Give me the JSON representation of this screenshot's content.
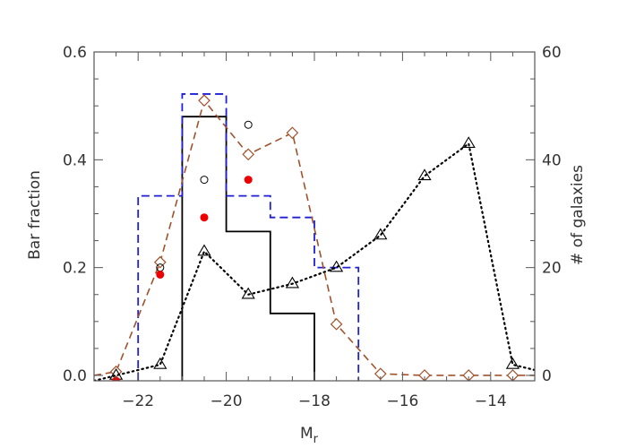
{
  "chart_data": {
    "type": "line",
    "xlabel": "M",
    "xlabel_sub": "r",
    "ylabel_left": "Bar fraction",
    "ylabel_right": "# of galaxies",
    "xlim": [
      -23,
      -13
    ],
    "ylim_left": [
      -0.01,
      0.6
    ],
    "ylim_right": [
      -1,
      60
    ],
    "grid": false,
    "x_ticks": [
      {
        "value": -22,
        "label": "−22"
      },
      {
        "value": -20,
        "label": "−20"
      },
      {
        "value": -18,
        "label": "−18"
      },
      {
        "value": -16,
        "label": "−16"
      },
      {
        "value": -14,
        "label": "−14"
      }
    ],
    "y_ticks_left": [
      {
        "value": 0.0,
        "label": "0.0"
      },
      {
        "value": 0.2,
        "label": "0.2"
      },
      {
        "value": 0.4,
        "label": "0.4"
      },
      {
        "value": 0.6,
        "label": "0.6"
      }
    ],
    "y_ticks_right": [
      {
        "value": 0,
        "label": "0"
      },
      {
        "value": 20,
        "label": "20"
      },
      {
        "value": 40,
        "label": "40"
      },
      {
        "value": 60,
        "label": "60"
      }
    ],
    "series": [
      {
        "style": "black-solid-histogram",
        "axis": "left",
        "color": "#000000",
        "bins": [
          {
            "x0": -21,
            "x1": -20,
            "y": 0.48
          },
          {
            "x0": -20,
            "x1": -19,
            "y": 0.267
          },
          {
            "x0": -19,
            "x1": -18,
            "y": 0.115
          }
        ]
      },
      {
        "style": "blue-dashed-histogram",
        "axis": "left",
        "color": "#1f1fd6",
        "bins": [
          {
            "x0": -22,
            "x1": -21,
            "y": 0.333
          },
          {
            "x0": -21,
            "x1": -20,
            "y": 0.522
          },
          {
            "x0": -20,
            "x1": -19,
            "y": 0.333
          },
          {
            "x0": -19,
            "x1": -18,
            "y": 0.293
          },
          {
            "x0": -18,
            "x1": -17,
            "y": 0.2
          }
        ]
      },
      {
        "style": "brown-dashed-diamonds",
        "axis": "right",
        "color": "#a0522d",
        "x": [
          -22.5,
          -21.5,
          -20.5,
          -19.5,
          -18.5,
          -17.5,
          -16.5,
          -15.5,
          -14.5,
          -13.5
        ],
        "values": [
          0.7,
          21,
          51,
          41,
          45,
          9.5,
          0.3,
          0,
          0,
          0
        ],
        "extend_left": {
          "x": -23,
          "y": 0
        },
        "extend_right": {
          "x": -13,
          "y": 0
        }
      },
      {
        "style": "black-dotted-triangles",
        "axis": "right",
        "color": "#000000",
        "x": [
          -22.5,
          -21.5,
          -20.5,
          -19.5,
          -18.5,
          -17.5,
          -16.5,
          -15.5,
          -14.5,
          -13.5
        ],
        "values": [
          0,
          2,
          23,
          15,
          17,
          20,
          26,
          37,
          43,
          2
        ],
        "extend_left": {
          "x": -23,
          "y": -1
        },
        "extend_right": {
          "x": -13,
          "y": 1
        }
      }
    ],
    "open_circles": [
      {
        "x": -21.5,
        "y": 0.2
      },
      {
        "x": -20.5,
        "y": 0.363
      },
      {
        "x": -19.5,
        "y": 0.465
      }
    ],
    "filled_circles": [
      {
        "x": -22.5,
        "y": -0.01
      },
      {
        "x": -21.5,
        "y": 0.187
      },
      {
        "x": -20.5,
        "y": 0.293
      },
      {
        "x": -19.5,
        "y": 0.363
      }
    ],
    "filled_circle_color": "#ee0000"
  }
}
